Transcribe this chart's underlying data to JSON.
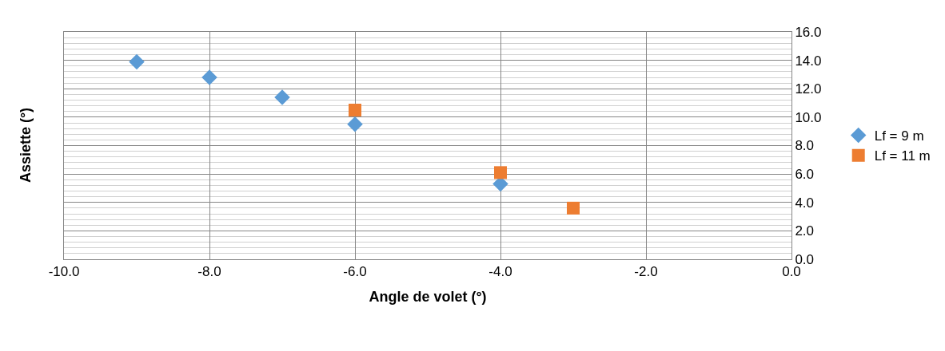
{
  "chart_data": {
    "type": "scatter",
    "xlabel": "Angle de volet (°)",
    "ylabel": "Assiette (°)",
    "series": [
      {
        "name": "Lf = 9 m",
        "color": "#5b9bd5",
        "marker": "diamond",
        "x": [
          -9,
          -8,
          -7,
          -6,
          -4
        ],
        "values": [
          13.9,
          12.8,
          11.4,
          9.5,
          5.3
        ]
      },
      {
        "name": "Lf = 11 m",
        "color": "#ed7d31",
        "marker": "square",
        "x": [
          -6,
          -4,
          -3
        ],
        "values": [
          10.5,
          6.1,
          3.6
        ]
      }
    ],
    "xlim": [
      -10,
      0
    ],
    "xticks": [
      {
        "value": -10,
        "label": "-10.0"
      },
      {
        "value": -8,
        "label": "-8.0"
      },
      {
        "value": -6,
        "label": "-6.0"
      },
      {
        "value": -4,
        "label": "-4.0"
      },
      {
        "value": -2,
        "label": "-2.0"
      },
      {
        "value": 0,
        "label": "0.0"
      }
    ],
    "ylim": [
      0,
      16
    ],
    "yticks": [
      {
        "value": 0,
        "label": "0.0"
      },
      {
        "value": 2,
        "label": "2.0"
      },
      {
        "value": 4,
        "label": "4.0"
      },
      {
        "value": 6,
        "label": "6.0"
      },
      {
        "value": 8,
        "label": "8.0"
      },
      {
        "value": 10,
        "label": "10.0"
      },
      {
        "value": 12,
        "label": "12.0"
      },
      {
        "value": 14,
        "label": "14.0"
      },
      {
        "value": 16,
        "label": "16.0"
      }
    ],
    "grid": true,
    "legend": "right"
  }
}
